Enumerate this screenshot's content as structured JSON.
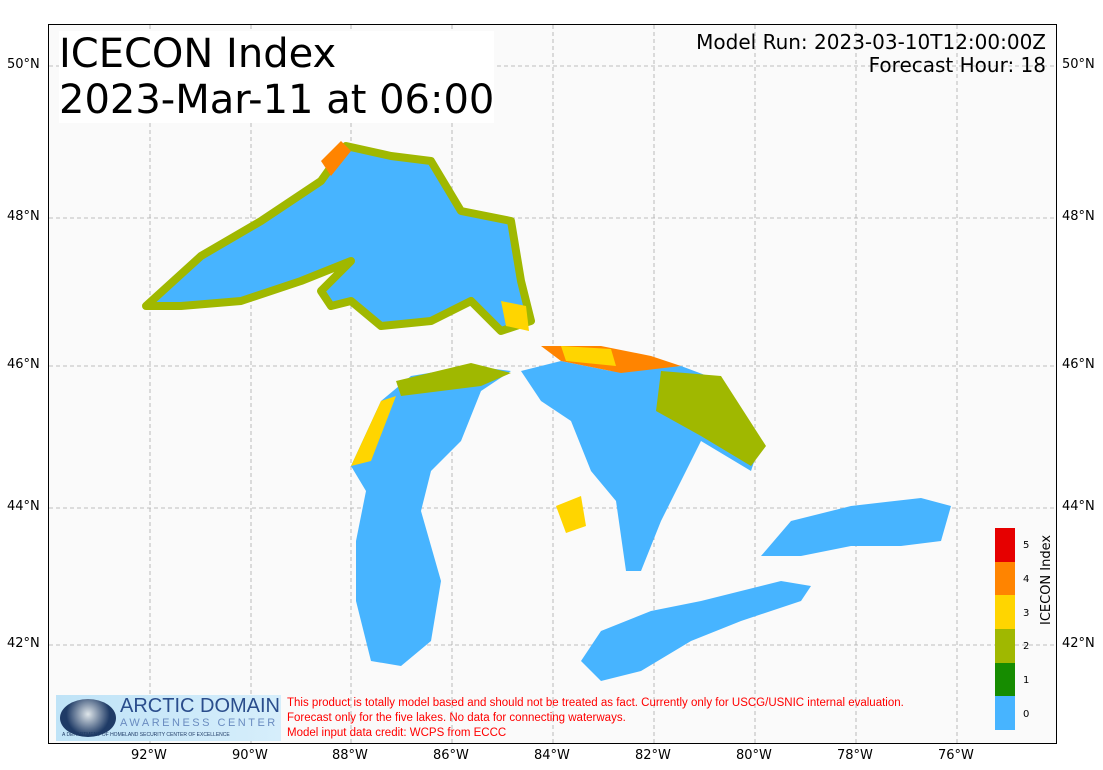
{
  "title": {
    "line1": "ICECON Index",
    "line2": "2023-Mar-11 at 06:00"
  },
  "model_run": "Model Run: 2023-03-10T12:00:00Z",
  "forecast_hour": "Forecast Hour: 18",
  "lat_ticks": [
    "50°N",
    "48°N",
    "46°N",
    "44°N",
    "42°N"
  ],
  "lon_ticks": [
    "92°W",
    "90°W",
    "88°W",
    "86°W",
    "84°W",
    "82°W",
    "80°W",
    "78°W",
    "76°W"
  ],
  "colorbar": {
    "label": "ICECON Index",
    "ticks": [
      "0",
      "1",
      "2",
      "3",
      "4",
      "5"
    ],
    "colors": [
      "#47b4ff",
      "#168c00",
      "#a0b800",
      "#ffd500",
      "#ff8400",
      "#e60000"
    ]
  },
  "logo": {
    "line1": "ARCTIC DOMAIN",
    "line2": "AWARENESS CENTER",
    "line3": "A DEPARTMENT OF HOMELAND SECURITY CENTER OF EXCELLENCE"
  },
  "disclaimer": [
    "This product is totally model based and should not be treated as fact. Currently only for USCG/USNIC internal evaluation.",
    "Forecast only for the five lakes. No data for connecting waterways.",
    "Model input data credit: WCPS from ECCC"
  ]
}
